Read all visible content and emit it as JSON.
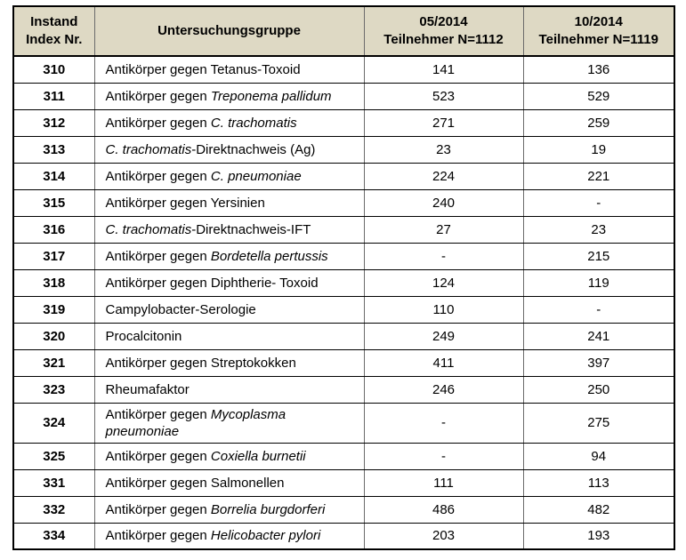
{
  "table": {
    "headers": [
      "Instand\nIndex Nr.",
      "Untersuchungsgruppe",
      "05/2014\nTeilnehmer N=1112",
      "10/2014\nTeilnehmer N=1119"
    ],
    "rows": [
      {
        "index": "310",
        "name": [
          {
            "t": "Antikörper gegen Tetanus-Toxoid"
          }
        ],
        "v1": "141",
        "v2": "136"
      },
      {
        "index": "311",
        "name": [
          {
            "t": "Antikörper gegen "
          },
          {
            "t": "Treponema pallidum",
            "i": true
          }
        ],
        "v1": "523",
        "v2": "529"
      },
      {
        "index": "312",
        "name": [
          {
            "t": "Antikörper gegen "
          },
          {
            "t": "C. trachomatis",
            "i": true
          }
        ],
        "v1": "271",
        "v2": "259"
      },
      {
        "index": "313",
        "name": [
          {
            "t": "C. trachomatis",
            "i": true
          },
          {
            "t": "-Direktnachweis (Ag)"
          }
        ],
        "v1": "23",
        "v2": "19"
      },
      {
        "index": "314",
        "name": [
          {
            "t": "Antikörper gegen "
          },
          {
            "t": "C. pneumoniae",
            "i": true
          }
        ],
        "v1": "224",
        "v2": "221"
      },
      {
        "index": "315",
        "name": [
          {
            "t": "Antikörper gegen Yersinien"
          }
        ],
        "v1": "240",
        "v2": "-"
      },
      {
        "index": "316",
        "name": [
          {
            "t": "C. trachomatis",
            "i": true
          },
          {
            "t": "-Direktnachweis-IFT"
          }
        ],
        "v1": "27",
        "v2": "23"
      },
      {
        "index": "317",
        "name": [
          {
            "t": "Antikörper gegen "
          },
          {
            "t": "Bordetella pertussis",
            "i": true
          }
        ],
        "v1": "-",
        "v2": "215"
      },
      {
        "index": "318",
        "name": [
          {
            "t": "Antikörper gegen Diphtherie- Toxoid"
          }
        ],
        "v1": "124",
        "v2": "119"
      },
      {
        "index": "319",
        "name": [
          {
            "t": "Campylobacter-Serologie"
          }
        ],
        "v1": "110",
        "v2": "-"
      },
      {
        "index": "320",
        "name": [
          {
            "t": "Procalcitonin"
          }
        ],
        "v1": "249",
        "v2": "241"
      },
      {
        "index": "321",
        "name": [
          {
            "t": "Antikörper gegen Streptokokken"
          }
        ],
        "v1": "411",
        "v2": "397"
      },
      {
        "index": "323",
        "name": [
          {
            "t": "Rheumafaktor"
          }
        ],
        "v1": "246",
        "v2": "250"
      },
      {
        "index": "324",
        "name": [
          {
            "t": "Antikörper gegen "
          },
          {
            "t": "Mycoplasma",
            "i": true
          },
          {
            "t": "\n"
          },
          {
            "t": "pneumoniae",
            "i": true
          }
        ],
        "v1": "-",
        "v2": "275"
      },
      {
        "index": "325",
        "name": [
          {
            "t": "Antikörper gegen "
          },
          {
            "t": "Coxiella burnetii",
            "i": true
          }
        ],
        "v1": "-",
        "v2": "94"
      },
      {
        "index": "331",
        "name": [
          {
            "t": "Antikörper gegen Salmonellen"
          }
        ],
        "v1": "111",
        "v2": "113"
      },
      {
        "index": "332",
        "name": [
          {
            "t": "Antikörper gegen "
          },
          {
            "t": "Borrelia burgdorferi",
            "i": true
          }
        ],
        "v1": "486",
        "v2": "482"
      },
      {
        "index": "334",
        "name": [
          {
            "t": "Antikörper gegen "
          },
          {
            "t": "Helicobacter pylori",
            "i": true
          }
        ],
        "v1": "203",
        "v2": "193"
      }
    ]
  },
  "colors": {
    "header_bg": "#ded9c4",
    "outer_border": "#000000",
    "horizontal_grid": "#000000",
    "vertical_grid": "#6b6b6b",
    "row_bg": "#ffffff",
    "text": "#000000"
  }
}
